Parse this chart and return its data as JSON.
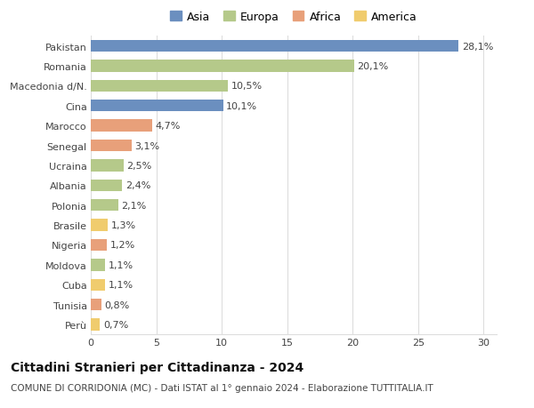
{
  "countries": [
    "Pakistan",
    "Romania",
    "Macedonia d/N.",
    "Cina",
    "Marocco",
    "Senegal",
    "Ucraina",
    "Albania",
    "Polonia",
    "Brasile",
    "Nigeria",
    "Moldova",
    "Cuba",
    "Tunisia",
    "Perù"
  ],
  "values": [
    28.1,
    20.1,
    10.5,
    10.1,
    4.7,
    3.1,
    2.5,
    2.4,
    2.1,
    1.3,
    1.2,
    1.1,
    1.1,
    0.8,
    0.7
  ],
  "labels": [
    "28,1%",
    "20,1%",
    "10,5%",
    "10,1%",
    "4,7%",
    "3,1%",
    "2,5%",
    "2,4%",
    "2,1%",
    "1,3%",
    "1,2%",
    "1,1%",
    "1,1%",
    "0,8%",
    "0,7%"
  ],
  "continents": [
    "Asia",
    "Europa",
    "Europa",
    "Asia",
    "Africa",
    "Africa",
    "Europa",
    "Europa",
    "Europa",
    "America",
    "Africa",
    "Europa",
    "America",
    "Africa",
    "America"
  ],
  "colors": {
    "Asia": "#6b8fbf",
    "Europa": "#b5c98a",
    "Africa": "#e8a07a",
    "America": "#f0cc6e"
  },
  "legend_labels": [
    "Asia",
    "Europa",
    "Africa",
    "America"
  ],
  "legend_colors": [
    "#6b8fbf",
    "#b5c98a",
    "#e8a07a",
    "#f0cc6e"
  ],
  "xlim": [
    0,
    31
  ],
  "xticks": [
    0,
    5,
    10,
    15,
    20,
    25,
    30
  ],
  "title": "Cittadini Stranieri per Cittadinanza - 2024",
  "subtitle": "COMUNE DI CORRIDONIA (MC) - Dati ISTAT al 1° gennaio 2024 - Elaborazione TUTTITALIA.IT",
  "bg_color": "#ffffff",
  "grid_color": "#dddddd",
  "bar_height": 0.6,
  "label_fontsize": 8,
  "tick_fontsize": 8,
  "title_fontsize": 10,
  "subtitle_fontsize": 7.5
}
